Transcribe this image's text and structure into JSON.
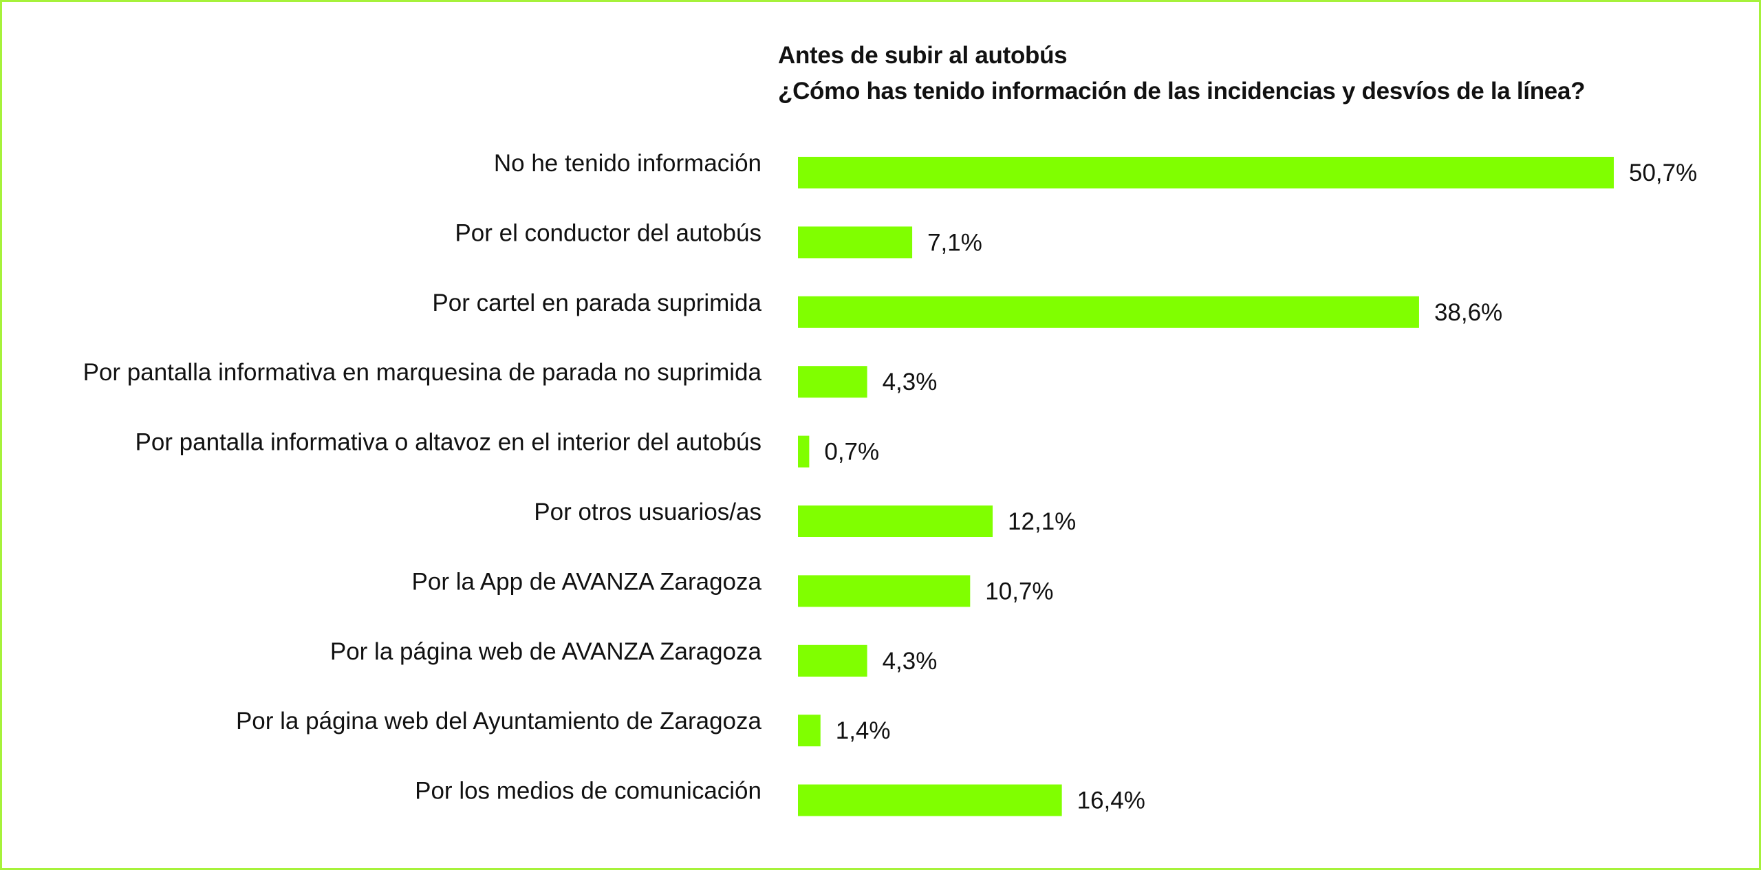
{
  "chart_data": {
    "type": "bar",
    "orientation": "horizontal",
    "title": "Antes de subir al autobús",
    "subtitle": "¿Cómo has tenido información de las incidencias y desvíos de la línea?",
    "categories": [
      "No he tenido información",
      "Por el conductor del autobús",
      "Por cartel en parada suprimida",
      "Por pantalla informativa en marquesina de parada no suprimida",
      "Por pantalla informativa o altavoz en el interior del autobús",
      "Por otros usuarios/as",
      "Por la App de AVANZA Zaragoza",
      "Por la página web de AVANZA Zaragoza",
      "Por la página web del Ayuntamiento de Zaragoza",
      "Por los medios de comunicación"
    ],
    "values": [
      50.7,
      7.1,
      38.6,
      4.3,
      0.7,
      12.1,
      10.7,
      4.3,
      1.4,
      16.4
    ],
    "value_labels": [
      "50,7%",
      "7,1%",
      "38,6%",
      "4,3%",
      "0,7%",
      "12,1%",
      "10,7%",
      "4,3%",
      "1,4%",
      "16,4%"
    ],
    "unit": "%",
    "xlim": [
      0,
      50.7
    ],
    "bar_color": "#80ff00",
    "frame_color": "#a6f23a",
    "grid": false,
    "legend": "none"
  }
}
